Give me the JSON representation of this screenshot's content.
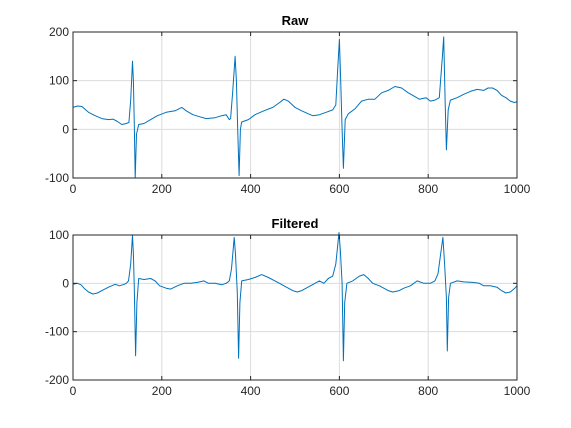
{
  "figure": {
    "background": "#ffffff",
    "line_color": "#0072bd"
  },
  "chart_data": [
    {
      "type": "line",
      "title": "Raw",
      "xlabel": "",
      "ylabel": "",
      "xlim": [
        0,
        1000
      ],
      "ylim": [
        -100,
        200
      ],
      "xticks": [
        0,
        200,
        400,
        600,
        800,
        1000
      ],
      "yticks": [
        -100,
        0,
        100,
        200
      ],
      "grid": true,
      "series": [
        {
          "points": [
            [
              0,
              45
            ],
            [
              10,
              48
            ],
            [
              20,
              47
            ],
            [
              35,
              35
            ],
            [
              50,
              28
            ],
            [
              65,
              22
            ],
            [
              80,
              20
            ],
            [
              90,
              21
            ],
            [
              100,
              16
            ],
            [
              110,
              10
            ],
            [
              120,
              12
            ],
            [
              126,
              14
            ],
            [
              130,
              60
            ],
            [
              134,
              140
            ],
            [
              136,
              100
            ],
            [
              138,
              10
            ],
            [
              140,
              -100
            ],
            [
              143,
              -10
            ],
            [
              148,
              10
            ],
            [
              160,
              12
            ],
            [
              175,
              20
            ],
            [
              190,
              28
            ],
            [
              210,
              35
            ],
            [
              230,
              38
            ],
            [
              245,
              45
            ],
            [
              255,
              38
            ],
            [
              270,
              30
            ],
            [
              285,
              26
            ],
            [
              300,
              22
            ],
            [
              320,
              24
            ],
            [
              335,
              28
            ],
            [
              345,
              30
            ],
            [
              352,
              20
            ],
            [
              355,
              22
            ],
            [
              360,
              80
            ],
            [
              365,
              150
            ],
            [
              368,
              100
            ],
            [
              371,
              0
            ],
            [
              374,
              -95
            ],
            [
              377,
              0
            ],
            [
              380,
              15
            ],
            [
              395,
              20
            ],
            [
              410,
              30
            ],
            [
              430,
              38
            ],
            [
              450,
              45
            ],
            [
              465,
              55
            ],
            [
              475,
              62
            ],
            [
              485,
              58
            ],
            [
              500,
              45
            ],
            [
              515,
              38
            ],
            [
              530,
              32
            ],
            [
              540,
              28
            ],
            [
              555,
              30
            ],
            [
              570,
              35
            ],
            [
              585,
              40
            ],
            [
              592,
              50
            ],
            [
              596,
              120
            ],
            [
              600,
              185
            ],
            [
              603,
              100
            ],
            [
              606,
              0
            ],
            [
              609,
              -80
            ],
            [
              613,
              20
            ],
            [
              620,
              32
            ],
            [
              635,
              42
            ],
            [
              650,
              58
            ],
            [
              665,
              62
            ],
            [
              680,
              62
            ],
            [
              695,
              75
            ],
            [
              710,
              80
            ],
            [
              725,
              88
            ],
            [
              740,
              85
            ],
            [
              755,
              75
            ],
            [
              765,
              70
            ],
            [
              780,
              62
            ],
            [
              795,
              65
            ],
            [
              805,
              58
            ],
            [
              815,
              60
            ],
            [
              825,
              65
            ],
            [
              832,
              150
            ],
            [
              835,
              190
            ],
            [
              838,
              60
            ],
            [
              841,
              -42
            ],
            [
              845,
              40
            ],
            [
              850,
              60
            ],
            [
              865,
              65
            ],
            [
              880,
              72
            ],
            [
              895,
              78
            ],
            [
              910,
              82
            ],
            [
              925,
              80
            ],
            [
              935,
              85
            ],
            [
              945,
              85
            ],
            [
              955,
              80
            ],
            [
              965,
              70
            ],
            [
              975,
              65
            ],
            [
              985,
              58
            ],
            [
              995,
              55
            ],
            [
              1000,
              57
            ]
          ]
        }
      ]
    },
    {
      "type": "line",
      "title": "Filtered",
      "xlabel": "",
      "ylabel": "",
      "xlim": [
        0,
        1000
      ],
      "ylim": [
        -200,
        100
      ],
      "xticks": [
        0,
        200,
        400,
        600,
        800,
        1000
      ],
      "yticks": [
        -200,
        -100,
        0,
        100
      ],
      "grid": true,
      "series": [
        {
          "points": [
            [
              0,
              -2
            ],
            [
              10,
              0
            ],
            [
              18,
              -3
            ],
            [
              25,
              -10
            ],
            [
              35,
              -18
            ],
            [
              45,
              -22
            ],
            [
              55,
              -20
            ],
            [
              65,
              -15
            ],
            [
              80,
              -8
            ],
            [
              95,
              -2
            ],
            [
              105,
              -5
            ],
            [
              115,
              -2
            ],
            [
              120,
              0
            ],
            [
              125,
              5
            ],
            [
              130,
              40
            ],
            [
              134,
              100
            ],
            [
              136,
              60
            ],
            [
              138,
              -10
            ],
            [
              141,
              -150
            ],
            [
              144,
              -40
            ],
            [
              148,
              10
            ],
            [
              160,
              8
            ],
            [
              175,
              10
            ],
            [
              185,
              5
            ],
            [
              195,
              -5
            ],
            [
              210,
              -10
            ],
            [
              220,
              -12
            ],
            [
              235,
              -5
            ],
            [
              250,
              0
            ],
            [
              265,
              0
            ],
            [
              280,
              2
            ],
            [
              295,
              5
            ],
            [
              305,
              0
            ],
            [
              320,
              0
            ],
            [
              335,
              -3
            ],
            [
              345,
              0
            ],
            [
              352,
              5
            ],
            [
              357,
              30
            ],
            [
              363,
              95
            ],
            [
              366,
              60
            ],
            [
              370,
              -20
            ],
            [
              373,
              -155
            ],
            [
              376,
              -40
            ],
            [
              380,
              5
            ],
            [
              395,
              8
            ],
            [
              410,
              12
            ],
            [
              425,
              18
            ],
            [
              440,
              12
            ],
            [
              455,
              5
            ],
            [
              465,
              0
            ],
            [
              475,
              -5
            ],
            [
              485,
              -10
            ],
            [
              495,
              -15
            ],
            [
              505,
              -18
            ],
            [
              515,
              -15
            ],
            [
              525,
              -10
            ],
            [
              535,
              -5
            ],
            [
              545,
              0
            ],
            [
              555,
              5
            ],
            [
              565,
              0
            ],
            [
              575,
              10
            ],
            [
              585,
              15
            ],
            [
              592,
              40
            ],
            [
              599,
              105
            ],
            [
              602,
              70
            ],
            [
              606,
              0
            ],
            [
              609,
              -160
            ],
            [
              612,
              -40
            ],
            [
              617,
              0
            ],
            [
              630,
              5
            ],
            [
              645,
              15
            ],
            [
              655,
              18
            ],
            [
              665,
              10
            ],
            [
              675,
              0
            ],
            [
              690,
              -5
            ],
            [
              700,
              -10
            ],
            [
              710,
              -15
            ],
            [
              720,
              -18
            ],
            [
              735,
              -15
            ],
            [
              745,
              -10
            ],
            [
              760,
              -5
            ],
            [
              775,
              5
            ],
            [
              790,
              0
            ],
            [
              805,
              0
            ],
            [
              815,
              5
            ],
            [
              822,
              20
            ],
            [
              828,
              60
            ],
            [
              833,
              95
            ],
            [
              837,
              40
            ],
            [
              841,
              -30
            ],
            [
              843,
              -140
            ],
            [
              846,
              -30
            ],
            [
              850,
              0
            ],
            [
              865,
              5
            ],
            [
              880,
              3
            ],
            [
              900,
              2
            ],
            [
              915,
              0
            ],
            [
              925,
              -5
            ],
            [
              940,
              -5
            ],
            [
              955,
              -8
            ],
            [
              965,
              -15
            ],
            [
              975,
              -20
            ],
            [
              985,
              -18
            ],
            [
              995,
              -10
            ],
            [
              1000,
              -5
            ]
          ]
        }
      ]
    }
  ]
}
